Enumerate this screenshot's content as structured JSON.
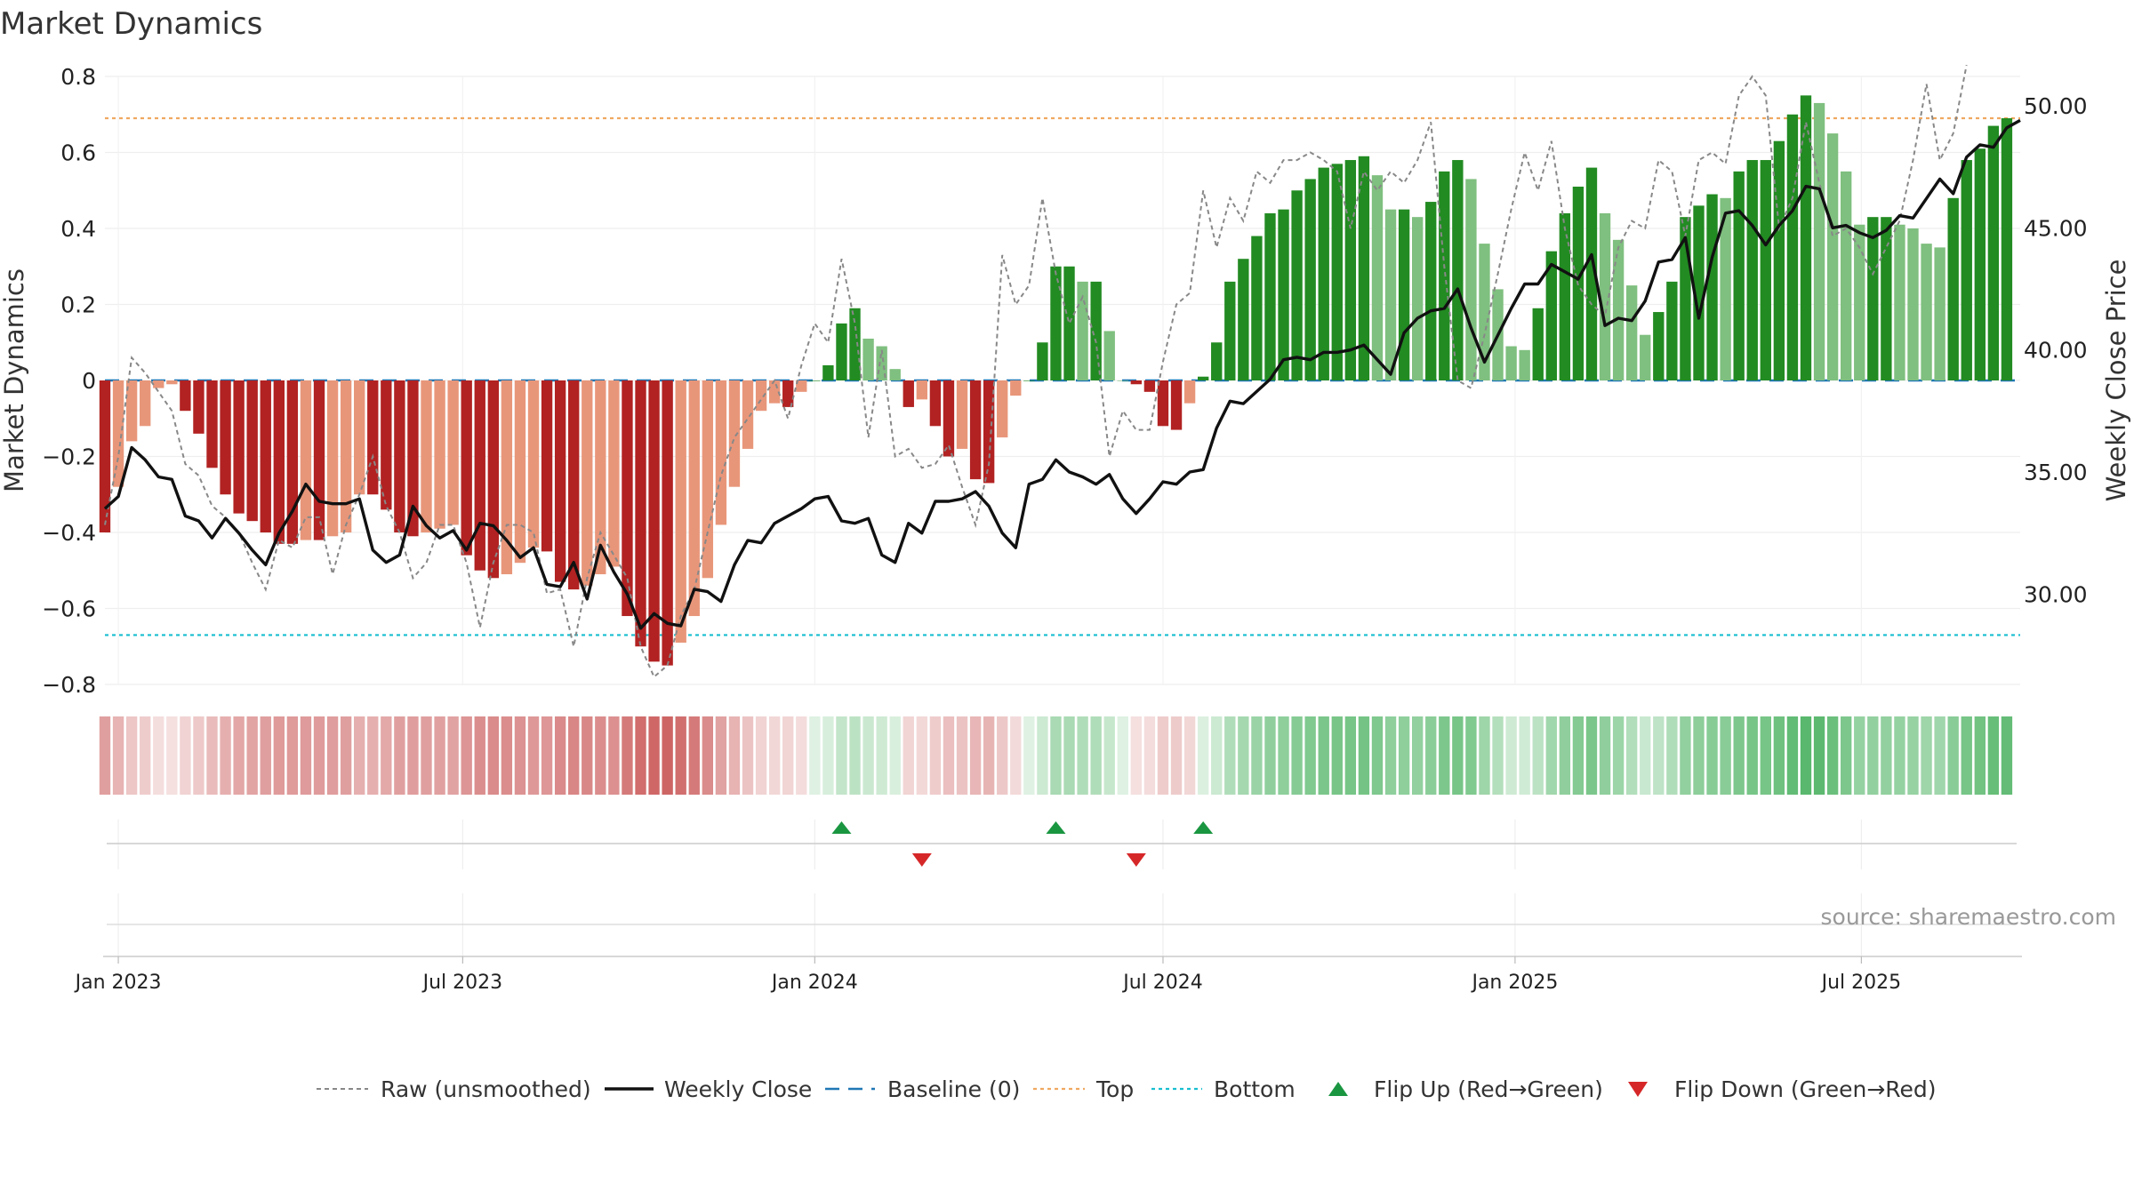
{
  "chart_data": {
    "type": "bar",
    "title": "Market Dynamics",
    "source_text": "source: sharemaestro.com",
    "y_left": {
      "label": "Market Dynamics",
      "range": [
        -0.8,
        0.8
      ],
      "ticks": [
        0.8,
        0.6,
        0.4,
        0.2,
        0,
        -0.2,
        -0.4,
        -0.6,
        -0.8
      ],
      "tick_labels": [
        "0.8",
        "0.6",
        "0.4",
        "0.2",
        "0",
        "−0.2",
        "−0.4",
        "−0.6",
        "−0.8"
      ]
    },
    "y_right": {
      "label": "Weekly Close Price",
      "range": [
        26.3,
        51.2
      ],
      "ticks": [
        50,
        45,
        40,
        35,
        30
      ],
      "tick_labels": [
        "50.00",
        "45.00",
        "40.00",
        "35.00",
        "30.00"
      ]
    },
    "x_axis": {
      "range": [
        "2022-12-26",
        "2025-09-22"
      ],
      "ticks": [
        "2023-01-02",
        "2023-07-01",
        "2024-01-01",
        "2024-07-01",
        "2025-01-01",
        "2025-07-01"
      ],
      "tick_labels": [
        "Jan 2023",
        "Jul 2023",
        "Jan 2024",
        "Jul 2024",
        "Jan 2025",
        "Jul 2025"
      ]
    },
    "start_date": "2022-12-26",
    "reference_lines": {
      "top": 0.69,
      "bottom": -0.67,
      "baseline": 0
    },
    "bar_values": [
      -0.4,
      -0.28,
      -0.16,
      -0.12,
      -0.02,
      -0.01,
      -0.08,
      -0.14,
      -0.23,
      -0.3,
      -0.35,
      -0.37,
      -0.4,
      -0.43,
      -0.43,
      -0.42,
      -0.42,
      -0.41,
      -0.4,
      -0.3,
      -0.3,
      -0.34,
      -0.4,
      -0.41,
      -0.4,
      -0.39,
      -0.38,
      -0.46,
      -0.5,
      -0.52,
      -0.51,
      -0.48,
      -0.44,
      -0.45,
      -0.53,
      -0.55,
      -0.54,
      -0.51,
      -0.49,
      -0.62,
      -0.7,
      -0.74,
      -0.75,
      -0.69,
      -0.62,
      -0.52,
      -0.38,
      -0.28,
      -0.18,
      -0.08,
      -0.06,
      -0.07,
      -0.03,
      0.0,
      0.04,
      0.15,
      0.19,
      0.11,
      0.09,
      0.03,
      -0.07,
      -0.05,
      -0.12,
      -0.2,
      -0.18,
      -0.26,
      -0.27,
      -0.15,
      -0.04,
      0.0,
      0.1,
      0.3,
      0.3,
      0.26,
      0.26,
      0.13,
      0.0,
      -0.01,
      -0.03,
      -0.12,
      -0.13,
      -0.06,
      0.01,
      0.1,
      0.26,
      0.32,
      0.38,
      0.44,
      0.45,
      0.5,
      0.53,
      0.56,
      0.57,
      0.58,
      0.59,
      0.54,
      0.45,
      0.45,
      0.43,
      0.47,
      0.55,
      0.58,
      0.53,
      0.36,
      0.24,
      0.09,
      0.08,
      0.19,
      0.34,
      0.44,
      0.51,
      0.56,
      0.44,
      0.37,
      0.25,
      0.12,
      0.18,
      0.26,
      0.43,
      0.46,
      0.49,
      0.48,
      0.55,
      0.58,
      0.58,
      0.63,
      0.7,
      0.75,
      0.73,
      0.65,
      0.55,
      0.41,
      0.43,
      0.43,
      0.41,
      0.4,
      0.36,
      0.35,
      0.48,
      0.58,
      0.61,
      0.67,
      0.69
    ],
    "raw_values": [
      -0.38,
      -0.2,
      0.06,
      0.02,
      -0.03,
      -0.08,
      -0.22,
      -0.25,
      -0.33,
      -0.36,
      -0.4,
      -0.48,
      -0.55,
      -0.42,
      -0.44,
      -0.36,
      -0.36,
      -0.51,
      -0.38,
      -0.3,
      -0.2,
      -0.33,
      -0.4,
      -0.52,
      -0.48,
      -0.38,
      -0.38,
      -0.48,
      -0.65,
      -0.48,
      -0.38,
      -0.38,
      -0.4,
      -0.56,
      -0.55,
      -0.7,
      -0.52,
      -0.4,
      -0.46,
      -0.52,
      -0.7,
      -0.78,
      -0.75,
      -0.62,
      -0.55,
      -0.4,
      -0.25,
      -0.15,
      -0.1,
      -0.05,
      0.0,
      -0.1,
      0.04,
      0.15,
      0.1,
      0.32,
      0.15,
      -0.15,
      0.08,
      -0.2,
      -0.18,
      -0.23,
      -0.22,
      -0.17,
      -0.28,
      -0.38,
      -0.22,
      0.33,
      0.2,
      0.25,
      0.48,
      0.28,
      0.15,
      0.22,
      0.1,
      -0.2,
      -0.08,
      -0.13,
      -0.13,
      0.05,
      0.2,
      0.23,
      0.5,
      0.35,
      0.48,
      0.42,
      0.55,
      0.52,
      0.58,
      0.58,
      0.6,
      0.58,
      0.55,
      0.4,
      0.55,
      0.5,
      0.55,
      0.52,
      0.58,
      0.68,
      0.3,
      0.0,
      -0.02,
      0.12,
      0.28,
      0.45,
      0.6,
      0.5,
      0.63,
      0.4,
      0.25,
      0.2,
      0.17,
      0.35,
      0.42,
      0.4,
      0.58,
      0.55,
      0.38,
      0.58,
      0.6,
      0.57,
      0.75,
      0.8,
      0.75,
      0.4,
      0.48,
      0.68,
      0.52,
      0.38,
      0.4,
      0.35,
      0.28,
      0.35,
      0.42,
      0.58,
      0.78,
      0.58,
      0.65,
      0.83
    ],
    "close_values": [
      33.5,
      34.0,
      36.0,
      35.5,
      34.8,
      34.7,
      33.2,
      33.0,
      32.3,
      33.1,
      32.5,
      31.8,
      31.2,
      32.5,
      33.4,
      34.5,
      33.8,
      33.7,
      33.7,
      33.9,
      31.8,
      31.3,
      31.6,
      33.6,
      32.8,
      32.3,
      32.6,
      31.8,
      32.9,
      32.8,
      32.2,
      31.5,
      31.9,
      30.4,
      30.3,
      31.3,
      29.8,
      32.0,
      30.9,
      30.0,
      28.6,
      29.2,
      28.8,
      28.7,
      30.2,
      30.1,
      29.7,
      31.2,
      32.2,
      32.1,
      32.9,
      33.2,
      33.5,
      33.9,
      34.0,
      33.0,
      32.9,
      33.1,
      31.6,
      31.3,
      32.9,
      32.5,
      33.8,
      33.8,
      33.9,
      34.2,
      33.6,
      32.5,
      31.9,
      34.5,
      34.7,
      35.5,
      35.0,
      34.8,
      34.5,
      34.9,
      33.9,
      33.3,
      33.9,
      34.6,
      34.5,
      35.0,
      35.1,
      36.8,
      37.9,
      37.8,
      38.3,
      38.8,
      39.6,
      39.7,
      39.6,
      39.9,
      39.9,
      40.0,
      40.2,
      39.6,
      39.0,
      40.7,
      41.3,
      41.6,
      41.7,
      42.5,
      40.9,
      39.5,
      40.6,
      41.7,
      42.7,
      42.7,
      43.5,
      43.2,
      42.9,
      43.9,
      41.0,
      41.3,
      41.2,
      42.0,
      43.6,
      43.7,
      44.6,
      41.3,
      43.8,
      45.6,
      45.7,
      45.1,
      44.3,
      45.1,
      45.7,
      46.7,
      46.6,
      45.0,
      45.1,
      44.8,
      44.6,
      44.9,
      45.5,
      45.4,
      46.2,
      47.0,
      46.4,
      47.9,
      48.4,
      48.3,
      49.1,
      49.4
    ],
    "flip_up_weeks": [
      55,
      71,
      82
    ],
    "flip_down_weeks": [
      61,
      77
    ],
    "legend": [
      "Raw (unsmoothed)",
      "Weekly Close",
      "Baseline (0)",
      "Top",
      "Bottom",
      "Flip Up (Red→Green)",
      "Flip Down (Green→Red)"
    ],
    "legend_placement": "bottom-center",
    "grid": true,
    "colors": {
      "neg_strong": "#b22222",
      "neg_weak": "#e8967a",
      "pos_strong": "#228b22",
      "pos_weak": "#7fbf7f",
      "raw": "#888888",
      "close": "#111111",
      "baseline": "#1f77b4",
      "top": "#f0a860",
      "bottom": "#17becf",
      "flip_up": "#1a9641",
      "flip_down": "#d62728"
    }
  }
}
